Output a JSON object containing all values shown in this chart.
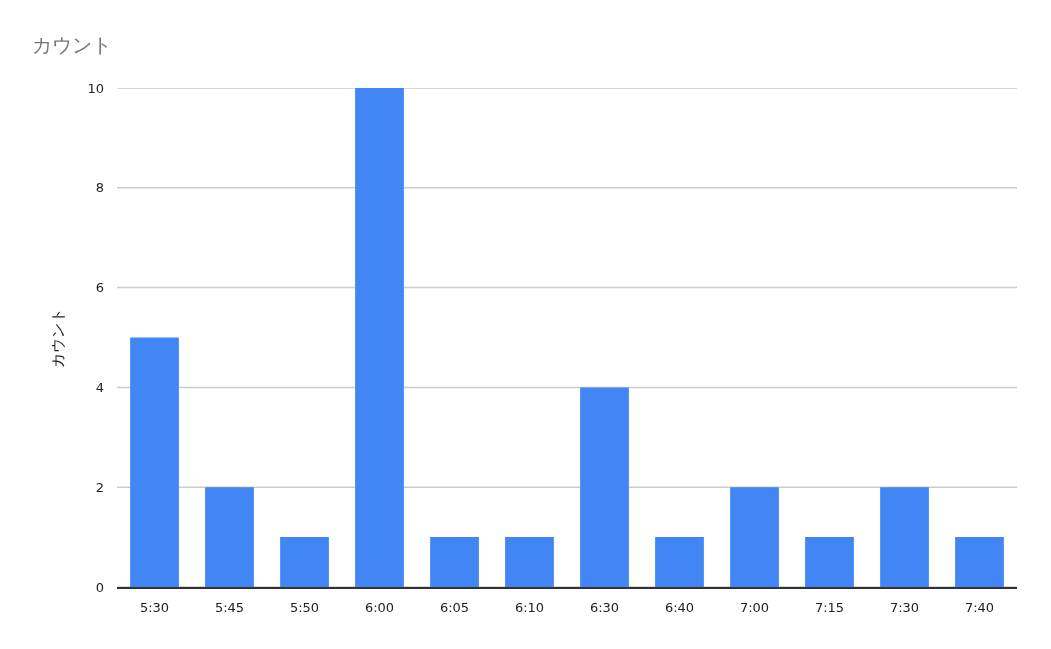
{
  "chart_data": {
    "type": "bar",
    "title": "カウント",
    "ylabel": "カウント",
    "categories": [
      "5:30",
      "5:45",
      "5:50",
      "6:00",
      "6:05",
      "6:10",
      "6:30",
      "6:40",
      "7:00",
      "7:15",
      "7:30",
      "7:40"
    ],
    "values": [
      5,
      2,
      1,
      10,
      1,
      1,
      4,
      1,
      2,
      1,
      2,
      1
    ],
    "color": "#4285f4",
    "ylim": [
      0,
      10
    ],
    "yticks": [
      0,
      2,
      4,
      6,
      8,
      10
    ],
    "grid": "y"
  }
}
